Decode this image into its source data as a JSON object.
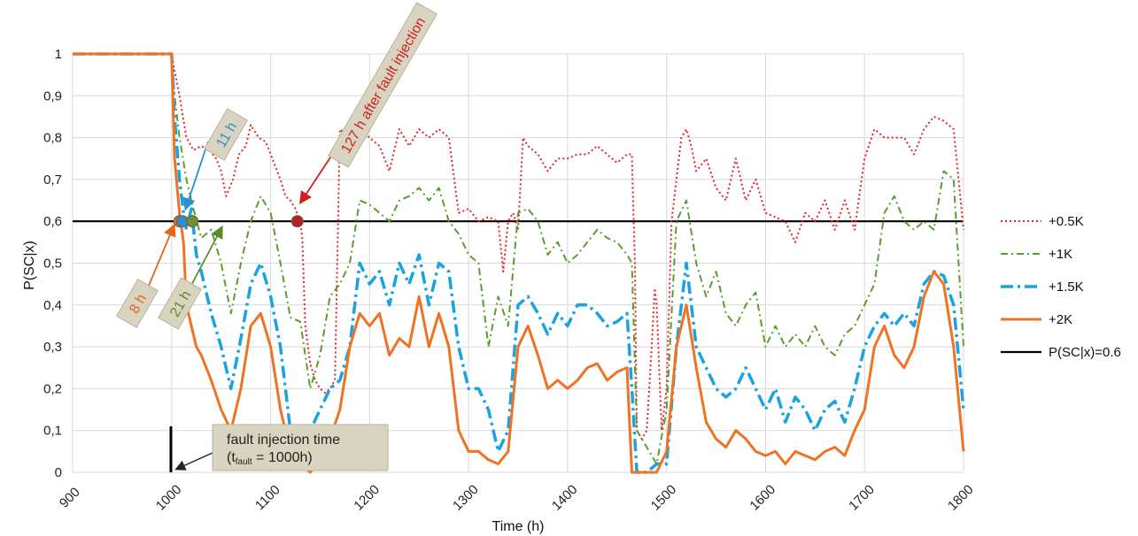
{
  "chart_data": {
    "type": "line",
    "title": "",
    "xlabel": "Time (h)",
    "ylabel": "P(SC|x)",
    "xlim": [
      900,
      1800
    ],
    "ylim": [
      0,
      1
    ],
    "x_ticks": [
      900,
      1000,
      1100,
      1200,
      1300,
      1400,
      1500,
      1600,
      1700,
      1800
    ],
    "y_ticks": [
      {
        "v": 0,
        "label": "0"
      },
      {
        "v": 0.1,
        "label": "0,1"
      },
      {
        "v": 0.2,
        "label": "0,2"
      },
      {
        "v": 0.3,
        "label": "0,3"
      },
      {
        "v": 0.4,
        "label": "0,4"
      },
      {
        "v": 0.5,
        "label": "0,5"
      },
      {
        "v": 0.6,
        "label": "0,6"
      },
      {
        "v": 0.7,
        "label": "0,7"
      },
      {
        "v": 0.8,
        "label": "0,8"
      },
      {
        "v": 0.9,
        "label": "0,9"
      },
      {
        "v": 1,
        "label": "1"
      }
    ],
    "grid": true,
    "legend_position": "right",
    "series": [
      {
        "name": "+0.5K",
        "color": "#e8212a",
        "style": "dotted",
        "x": [
          900,
          1000,
          1003,
          1008,
          1015,
          1022,
          1030,
          1038,
          1045,
          1050,
          1055,
          1062,
          1068,
          1075,
          1080,
          1088,
          1095,
          1100,
          1110,
          1115,
          1120,
          1125,
          1128,
          1130,
          1132,
          1135,
          1140,
          1145,
          1150,
          1155,
          1160,
          1165,
          1170,
          1180,
          1190,
          1200,
          1210,
          1220,
          1230,
          1240,
          1250,
          1260,
          1270,
          1280,
          1290,
          1300,
          1310,
          1320,
          1330,
          1335,
          1340,
          1345,
          1350,
          1355,
          1360,
          1370,
          1380,
          1390,
          1400,
          1410,
          1420,
          1430,
          1440,
          1450,
          1460,
          1465,
          1468,
          1470,
          1475,
          1480,
          1485,
          1488,
          1490,
          1495,
          1500,
          1505,
          1510,
          1515,
          1520,
          1525,
          1530,
          1540,
          1550,
          1560,
          1570,
          1580,
          1590,
          1600,
          1610,
          1620,
          1630,
          1640,
          1650,
          1660,
          1670,
          1680,
          1690,
          1700,
          1710,
          1720,
          1730,
          1740,
          1750,
          1760,
          1770,
          1780,
          1790,
          1795,
          1800
        ],
        "y": [
          1,
          1,
          0.96,
          0.9,
          0.8,
          0.77,
          0.78,
          0.77,
          0.75,
          0.72,
          0.66,
          0.7,
          0.76,
          0.78,
          0.83,
          0.8,
          0.79,
          0.76,
          0.7,
          0.66,
          0.65,
          0.63,
          0.61,
          0.6,
          0.56,
          0.35,
          0.26,
          0.22,
          0.2,
          0.19,
          0.2,
          0.22,
          0.82,
          0.8,
          0.82,
          0.8,
          0.78,
          0.72,
          0.82,
          0.78,
          0.82,
          0.8,
          0.82,
          0.8,
          0.62,
          0.63,
          0.6,
          0.61,
          0.6,
          0.48,
          0.6,
          0.62,
          0.58,
          0.8,
          0.78,
          0.76,
          0.72,
          0.75,
          0.75,
          0.76,
          0.76,
          0.78,
          0.76,
          0.74,
          0.76,
          0.76,
          0.5,
          0.1,
          0.08,
          0.1,
          0.3,
          0.44,
          0.4,
          0.1,
          0.2,
          0.6,
          0.7,
          0.8,
          0.82,
          0.78,
          0.72,
          0.75,
          0.68,
          0.65,
          0.75,
          0.65,
          0.7,
          0.62,
          0.61,
          0.6,
          0.55,
          0.62,
          0.6,
          0.65,
          0.58,
          0.65,
          0.58,
          0.75,
          0.82,
          0.8,
          0.8,
          0.8,
          0.76,
          0.82,
          0.85,
          0.84,
          0.82,
          0.7,
          0.58
        ]
      },
      {
        "name": "+1K",
        "color": "#5a9e2f",
        "style": "dashdot",
        "x": [
          900,
          1000,
          1003,
          1008,
          1015,
          1022,
          1030,
          1040,
          1050,
          1060,
          1070,
          1080,
          1090,
          1100,
          1110,
          1120,
          1130,
          1140,
          1150,
          1160,
          1170,
          1180,
          1190,
          1200,
          1210,
          1220,
          1230,
          1240,
          1250,
          1260,
          1270,
          1280,
          1290,
          1300,
          1310,
          1320,
          1330,
          1340,
          1350,
          1360,
          1370,
          1380,
          1390,
          1400,
          1410,
          1420,
          1430,
          1440,
          1450,
          1460,
          1465,
          1470,
          1480,
          1490,
          1500,
          1510,
          1520,
          1530,
          1540,
          1550,
          1560,
          1570,
          1580,
          1590,
          1600,
          1610,
          1620,
          1630,
          1640,
          1650,
          1660,
          1670,
          1680,
          1690,
          1700,
          1710,
          1720,
          1730,
          1740,
          1750,
          1760,
          1770,
          1780,
          1790,
          1800
        ],
        "y": [
          1,
          1,
          0.9,
          0.8,
          0.7,
          0.63,
          0.56,
          0.58,
          0.5,
          0.38,
          0.5,
          0.6,
          0.66,
          0.62,
          0.5,
          0.37,
          0.36,
          0.2,
          0.28,
          0.42,
          0.45,
          0.5,
          0.65,
          0.64,
          0.62,
          0.6,
          0.65,
          0.66,
          0.68,
          0.65,
          0.68,
          0.6,
          0.57,
          0.52,
          0.5,
          0.3,
          0.42,
          0.35,
          0.62,
          0.63,
          0.6,
          0.52,
          0.55,
          0.5,
          0.52,
          0.55,
          0.58,
          0.56,
          0.55,
          0.52,
          0.5,
          0.1,
          0.06,
          0.02,
          0.15,
          0.6,
          0.65,
          0.5,
          0.42,
          0.48,
          0.38,
          0.35,
          0.4,
          0.43,
          0.3,
          0.35,
          0.3,
          0.33,
          0.3,
          0.35,
          0.3,
          0.28,
          0.33,
          0.35,
          0.4,
          0.45,
          0.62,
          0.66,
          0.6,
          0.58,
          0.6,
          0.58,
          0.72,
          0.7,
          0.3
        ]
      },
      {
        "name": "+1.5K",
        "color": "#1aa3e0",
        "style": "longdashdot",
        "x": [
          900,
          1000,
          1003,
          1008,
          1012,
          1015,
          1020,
          1025,
          1030,
          1040,
          1050,
          1060,
          1070,
          1080,
          1090,
          1100,
          1110,
          1120,
          1130,
          1140,
          1150,
          1160,
          1170,
          1180,
          1190,
          1200,
          1210,
          1220,
          1230,
          1240,
          1250,
          1260,
          1270,
          1280,
          1290,
          1300,
          1310,
          1320,
          1330,
          1340,
          1350,
          1360,
          1370,
          1380,
          1390,
          1400,
          1410,
          1420,
          1430,
          1440,
          1450,
          1460,
          1465,
          1470,
          1480,
          1490,
          1500,
          1510,
          1520,
          1530,
          1540,
          1550,
          1560,
          1570,
          1580,
          1590,
          1600,
          1610,
          1620,
          1630,
          1640,
          1650,
          1660,
          1670,
          1680,
          1690,
          1700,
          1710,
          1720,
          1730,
          1740,
          1750,
          1760,
          1770,
          1780,
          1790,
          1800
        ],
        "y": [
          1,
          1,
          0.85,
          0.7,
          0.62,
          0.58,
          0.63,
          0.52,
          0.48,
          0.38,
          0.3,
          0.2,
          0.32,
          0.45,
          0.5,
          0.42,
          0.3,
          0.1,
          0.05,
          0.1,
          0.15,
          0.2,
          0.22,
          0.3,
          0.5,
          0.45,
          0.48,
          0.4,
          0.5,
          0.45,
          0.52,
          0.4,
          0.5,
          0.48,
          0.3,
          0.2,
          0.2,
          0.15,
          0.05,
          0.1,
          0.4,
          0.42,
          0.38,
          0.33,
          0.38,
          0.35,
          0.4,
          0.4,
          0.38,
          0.35,
          0.36,
          0.38,
          0.2,
          0.0,
          0.0,
          0.02,
          0.02,
          0.3,
          0.5,
          0.3,
          0.25,
          0.2,
          0.18,
          0.2,
          0.25,
          0.2,
          0.15,
          0.2,
          0.12,
          0.18,
          0.15,
          0.1,
          0.15,
          0.17,
          0.12,
          0.2,
          0.3,
          0.35,
          0.38,
          0.35,
          0.38,
          0.35,
          0.45,
          0.48,
          0.47,
          0.4,
          0.15
        ]
      },
      {
        "name": "+2K",
        "color": "#ee7325",
        "style": "solid",
        "x": [
          900,
          1000,
          1003,
          1008,
          1012,
          1015,
          1020,
          1025,
          1030,
          1040,
          1050,
          1060,
          1070,
          1080,
          1090,
          1100,
          1110,
          1120,
          1130,
          1140,
          1150,
          1160,
          1170,
          1180,
          1190,
          1200,
          1210,
          1220,
          1230,
          1240,
          1250,
          1260,
          1270,
          1280,
          1290,
          1300,
          1310,
          1320,
          1330,
          1340,
          1350,
          1360,
          1370,
          1380,
          1390,
          1400,
          1410,
          1420,
          1430,
          1440,
          1450,
          1460,
          1465,
          1470,
          1480,
          1490,
          1500,
          1510,
          1520,
          1530,
          1540,
          1550,
          1560,
          1570,
          1580,
          1590,
          1600,
          1610,
          1620,
          1630,
          1640,
          1650,
          1660,
          1670,
          1680,
          1690,
          1700,
          1710,
          1720,
          1730,
          1740,
          1750,
          1760,
          1770,
          1780,
          1790,
          1800
        ],
        "y": [
          1,
          1,
          0.75,
          0.62,
          0.55,
          0.4,
          0.35,
          0.3,
          0.28,
          0.22,
          0.15,
          0.1,
          0.2,
          0.35,
          0.38,
          0.3,
          0.15,
          0.05,
          0.02,
          0.0,
          0.03,
          0.08,
          0.15,
          0.3,
          0.38,
          0.35,
          0.38,
          0.28,
          0.32,
          0.3,
          0.42,
          0.3,
          0.38,
          0.3,
          0.1,
          0.05,
          0.05,
          0.03,
          0.02,
          0.05,
          0.3,
          0.35,
          0.28,
          0.2,
          0.22,
          0.2,
          0.22,
          0.25,
          0.26,
          0.22,
          0.24,
          0.25,
          0.0,
          0.0,
          0.0,
          0.0,
          0.05,
          0.3,
          0.4,
          0.25,
          0.12,
          0.08,
          0.06,
          0.1,
          0.08,
          0.05,
          0.04,
          0.05,
          0.02,
          0.05,
          0.04,
          0.03,
          0.05,
          0.06,
          0.04,
          0.1,
          0.15,
          0.3,
          0.35,
          0.28,
          0.25,
          0.3,
          0.42,
          0.48,
          0.45,
          0.3,
          0.05
        ]
      },
      {
        "name": "P(SC|x)=0.6",
        "color": "#000000",
        "style": "solid",
        "x": [
          900,
          1800
        ],
        "y": [
          0.6,
          0.6
        ]
      }
    ],
    "detection_points": [
      {
        "x": 1008,
        "y": 0.6,
        "color": "#c8742c"
      },
      {
        "x": 1011,
        "y": 0.6,
        "color": "#2a8fd0"
      },
      {
        "x": 1021,
        "y": 0.6,
        "color": "#6b8f3a"
      },
      {
        "x": 1127,
        "y": 0.6,
        "color": "#b22222"
      }
    ],
    "annotations": [
      {
        "id": "ann-8h",
        "text": "8 h",
        "color": "#e06a1c"
      },
      {
        "id": "ann-11h",
        "text": "11 h",
        "color": "#2a8fd0"
      },
      {
        "id": "ann-21h",
        "text": "21 h",
        "color": "#5b8c2a"
      },
      {
        "id": "ann-127h",
        "text": "127 h after fault injection",
        "color": "#cc2222"
      },
      {
        "id": "ann-fault",
        "text_main": "fault injection time",
        "text_sub_open": "(t",
        "text_sub_script": "fault",
        "text_sub_close": " = 1000h)",
        "color": "#222222"
      }
    ]
  }
}
